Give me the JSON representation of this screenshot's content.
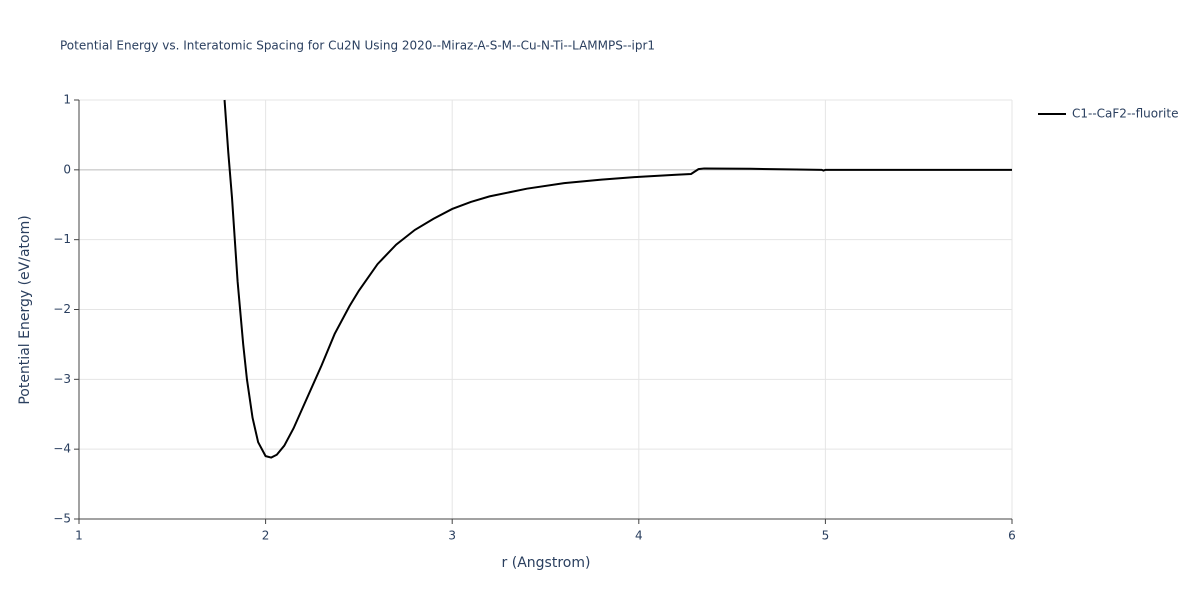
{
  "chart_data": {
    "type": "line",
    "title": "Potential Energy vs. Interatomic Spacing for Cu2N Using 2020--Miraz-A-S-M--Cu-N-Ti--LAMMPS--ipr1",
    "x_label": "r (Angstrom)",
    "y_label": "Potential Energy (eV/atom)",
    "x": [
      1.78,
      1.8,
      1.82,
      1.85,
      1.88,
      1.9,
      1.93,
      1.96,
      2.0,
      2.03,
      2.06,
      2.1,
      2.15,
      2.2,
      2.3,
      2.37,
      2.45,
      2.5,
      2.6,
      2.7,
      2.8,
      2.9,
      3.0,
      3.1,
      3.2,
      3.4,
      3.6,
      3.8,
      4.0,
      4.2,
      4.28,
      4.32,
      4.35,
      4.6,
      4.98,
      4.99,
      5.0,
      5.5,
      6.0
    ],
    "series": [
      {
        "name": "C1--CaF2--fluorite",
        "color": "#000000",
        "values": [
          1.0,
          0.25,
          -0.4,
          -1.6,
          -2.5,
          -3.0,
          -3.55,
          -3.9,
          -4.1,
          -4.12,
          -4.08,
          -3.95,
          -3.7,
          -3.4,
          -2.8,
          -2.35,
          -1.95,
          -1.73,
          -1.35,
          -1.07,
          -0.86,
          -0.7,
          -0.56,
          -0.46,
          -0.38,
          -0.27,
          -0.19,
          -0.14,
          -0.1,
          -0.07,
          -0.06,
          0.01,
          0.02,
          0.015,
          0.0,
          -0.01,
          0.0,
          0.0,
          0.0
        ]
      }
    ],
    "xlim": [
      1,
      6
    ],
    "xticks": [
      1,
      2,
      3,
      4,
      5,
      6
    ],
    "ylim": [
      -5,
      1
    ],
    "yticks": [
      {
        "value": -5,
        "label": "−5"
      },
      {
        "value": -4,
        "label": "−4"
      },
      {
        "value": -3,
        "label": "−3"
      },
      {
        "value": -2,
        "label": "−2"
      },
      {
        "value": -1,
        "label": "−1"
      },
      0,
      1
    ],
    "grid": true,
    "legend": "right"
  }
}
